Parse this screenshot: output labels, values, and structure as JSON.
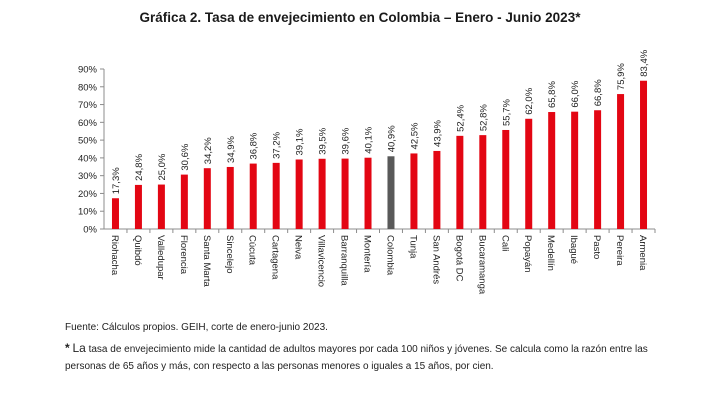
{
  "title": "Gráfica 2. Tasa de envejecimiento en Colombia – Enero - Junio 2023*",
  "source": "Fuente: Cálculos propios. GEIH, corte de enero-junio 2023.",
  "note": {
    "marker": "*",
    "first_word": "La",
    "text": "tasa de envejecimiento mide la cantidad de adultos mayores por cada 100 niños y jóvenes. Se calcula como la razón entre las personas de 65 años y más, con respecto a las personas menores o iguales a 15 años, por cien."
  },
  "colors": {
    "bar": "#e30613",
    "highlight": "#595959",
    "axis": "#8c8c8c"
  },
  "chart_data": {
    "type": "bar",
    "title": "Gráfica 2. Tasa de envejecimiento en Colombia – Enero - Junio 2023*",
    "categories": [
      "Riohacha",
      "Quibdó",
      "Valledupar",
      "Florencia",
      "Santa Marta",
      "Sincelejo",
      "Cúcuta",
      "Cartagena",
      "Neiva",
      "Villavicencio",
      "Barranquilla",
      "Montería",
      "Colombia",
      "Tunja",
      "San Andrés",
      "Bogotá DC",
      "Bucaramanga",
      "Cali",
      "Popayán",
      "Medellín",
      "Ibagué",
      "Pasto",
      "Pereira",
      "Armenia"
    ],
    "values": [
      17.3,
      24.8,
      25.0,
      30.6,
      34.2,
      34.9,
      36.8,
      37.2,
      39.1,
      39.5,
      39.6,
      40.1,
      40.9,
      42.5,
      43.9,
      52.4,
      52.8,
      55.7,
      62.0,
      65.8,
      66.0,
      66.8,
      75.9,
      83.4
    ],
    "value_labels": [
      "17,3%",
      "24,8%",
      "25,0%",
      "30,6%",
      "34,2%",
      "34,9%",
      "36,8%",
      "37,2%",
      "39,1%",
      "39,5%",
      "39,6%",
      "40,1%",
      "40,9%",
      "42,5%",
      "43,9%",
      "52,4%",
      "52,8%",
      "55,7%",
      "62,0%",
      "65,8%",
      "66,0%",
      "66,8%",
      "75,9%",
      "83,4%"
    ],
    "highlight_category": "Colombia",
    "ylim": [
      0,
      90
    ],
    "y_ticks": [
      "0%",
      "10%",
      "20%",
      "30%",
      "40%",
      "50%",
      "60%",
      "70%",
      "80%",
      "90%"
    ],
    "xlabel": "",
    "ylabel": "",
    "grid": false,
    "legend": "none"
  }
}
